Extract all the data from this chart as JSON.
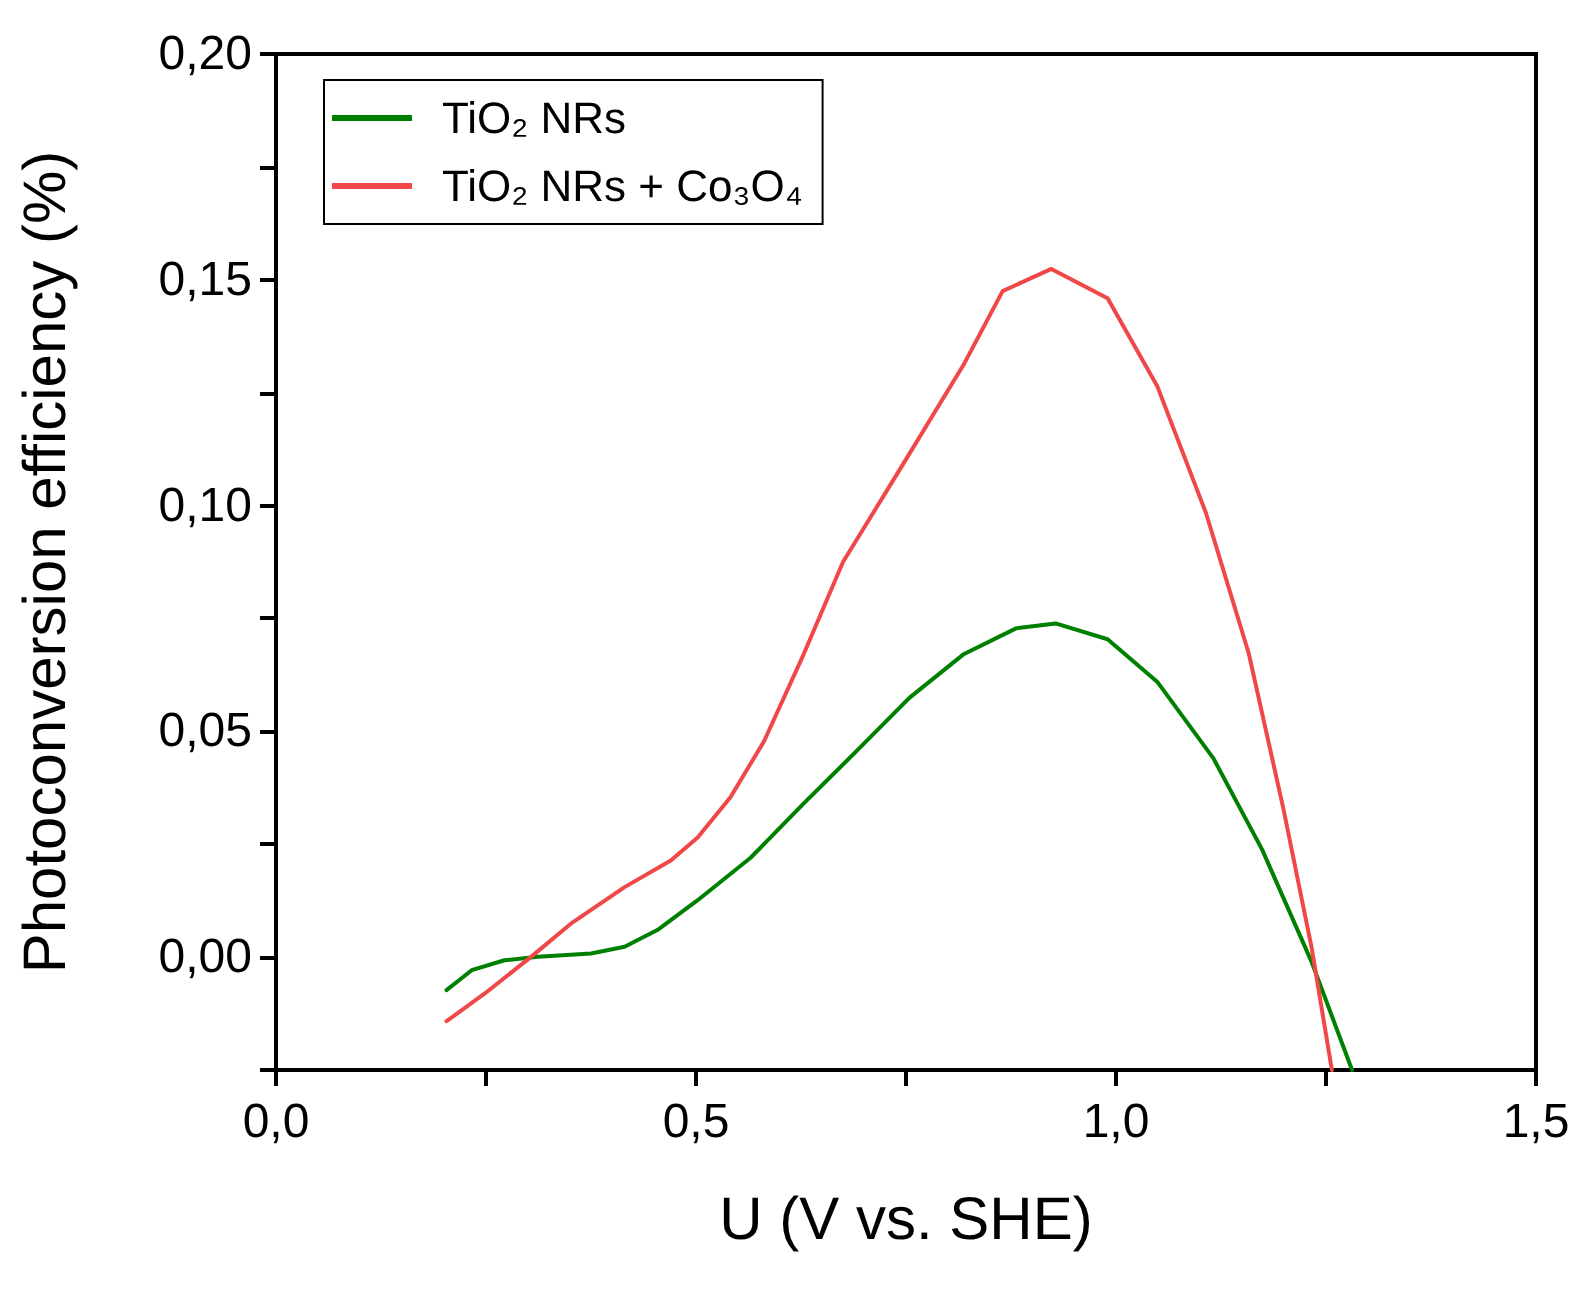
{
  "chart_data": {
    "type": "line",
    "xlabel": "U (V vs. SHE)",
    "ylabel": "Photoconversion efficiency (%)",
    "xlim": [
      0,
      1.5
    ],
    "xticks": [
      {
        "value": 0,
        "label": "0,0"
      },
      {
        "value": 0.25,
        "label": null
      },
      {
        "value": 0.5,
        "label": "0,5"
      },
      {
        "value": 0.75,
        "label": null
      },
      {
        "value": 1.0,
        "label": "1,0"
      },
      {
        "value": 1.25,
        "label": null
      },
      {
        "value": 1.5,
        "label": "1,5"
      }
    ],
    "ylim": [
      -0.025,
      0.2
    ],
    "yticks": [
      {
        "value": -0.025,
        "label": null
      },
      {
        "value": 0,
        "label": "0,00"
      },
      {
        "value": 0.025,
        "label": null
      },
      {
        "value": 0.05,
        "label": "0,05"
      },
      {
        "value": 0.075,
        "label": null
      },
      {
        "value": 0.1,
        "label": "0,10"
      },
      {
        "value": 0.125,
        "label": null
      },
      {
        "value": 0.15,
        "label": "0,15"
      },
      {
        "value": 0.175,
        "label": null
      },
      {
        "value": 0.2,
        "label": "0,20"
      }
    ],
    "grid": false,
    "legend": "top left",
    "marker": "none",
    "line_style": "solid",
    "series": [
      {
        "name": "TiO₂ NRs",
        "color": "#008000",
        "x": [
          0.203,
          0.233,
          0.272,
          0.312,
          0.375,
          0.415,
          0.454,
          0.502,
          0.565,
          0.628,
          0.691,
          0.754,
          0.818,
          0.881,
          0.928,
          0.99,
          1.049,
          1.116,
          1.174,
          1.233,
          1.281
        ],
        "values": [
          -0.0073,
          -0.0029,
          -0.0007,
          0.0001,
          0.0008,
          0.0023,
          0.006,
          0.0126,
          0.022,
          0.034,
          0.0456,
          0.0574,
          0.067,
          0.0728,
          0.0739,
          0.0704,
          0.061,
          0.044,
          0.0238,
          -0.0011,
          -0.025
        ]
      },
      {
        "name": "TiO₂ NRs + Co₃O₄",
        "color": "#f04848",
        "x": [
          0.203,
          0.249,
          0.304,
          0.351,
          0.415,
          0.47,
          0.502,
          0.541,
          0.581,
          0.628,
          0.675,
          0.746,
          0.818,
          0.865,
          0.923,
          0.99,
          1.049,
          1.107,
          1.158,
          1.199,
          1.233,
          1.257
        ],
        "values": [
          -0.0142,
          -0.008,
          0.0001,
          0.0074,
          0.0155,
          0.0214,
          0.0265,
          0.0354,
          0.0478,
          0.067,
          0.0875,
          0.109,
          0.131,
          0.1475,
          0.1524,
          0.1459,
          0.1265,
          0.0984,
          0.0673,
          0.0331,
          0.002,
          -0.025
        ]
      }
    ]
  }
}
